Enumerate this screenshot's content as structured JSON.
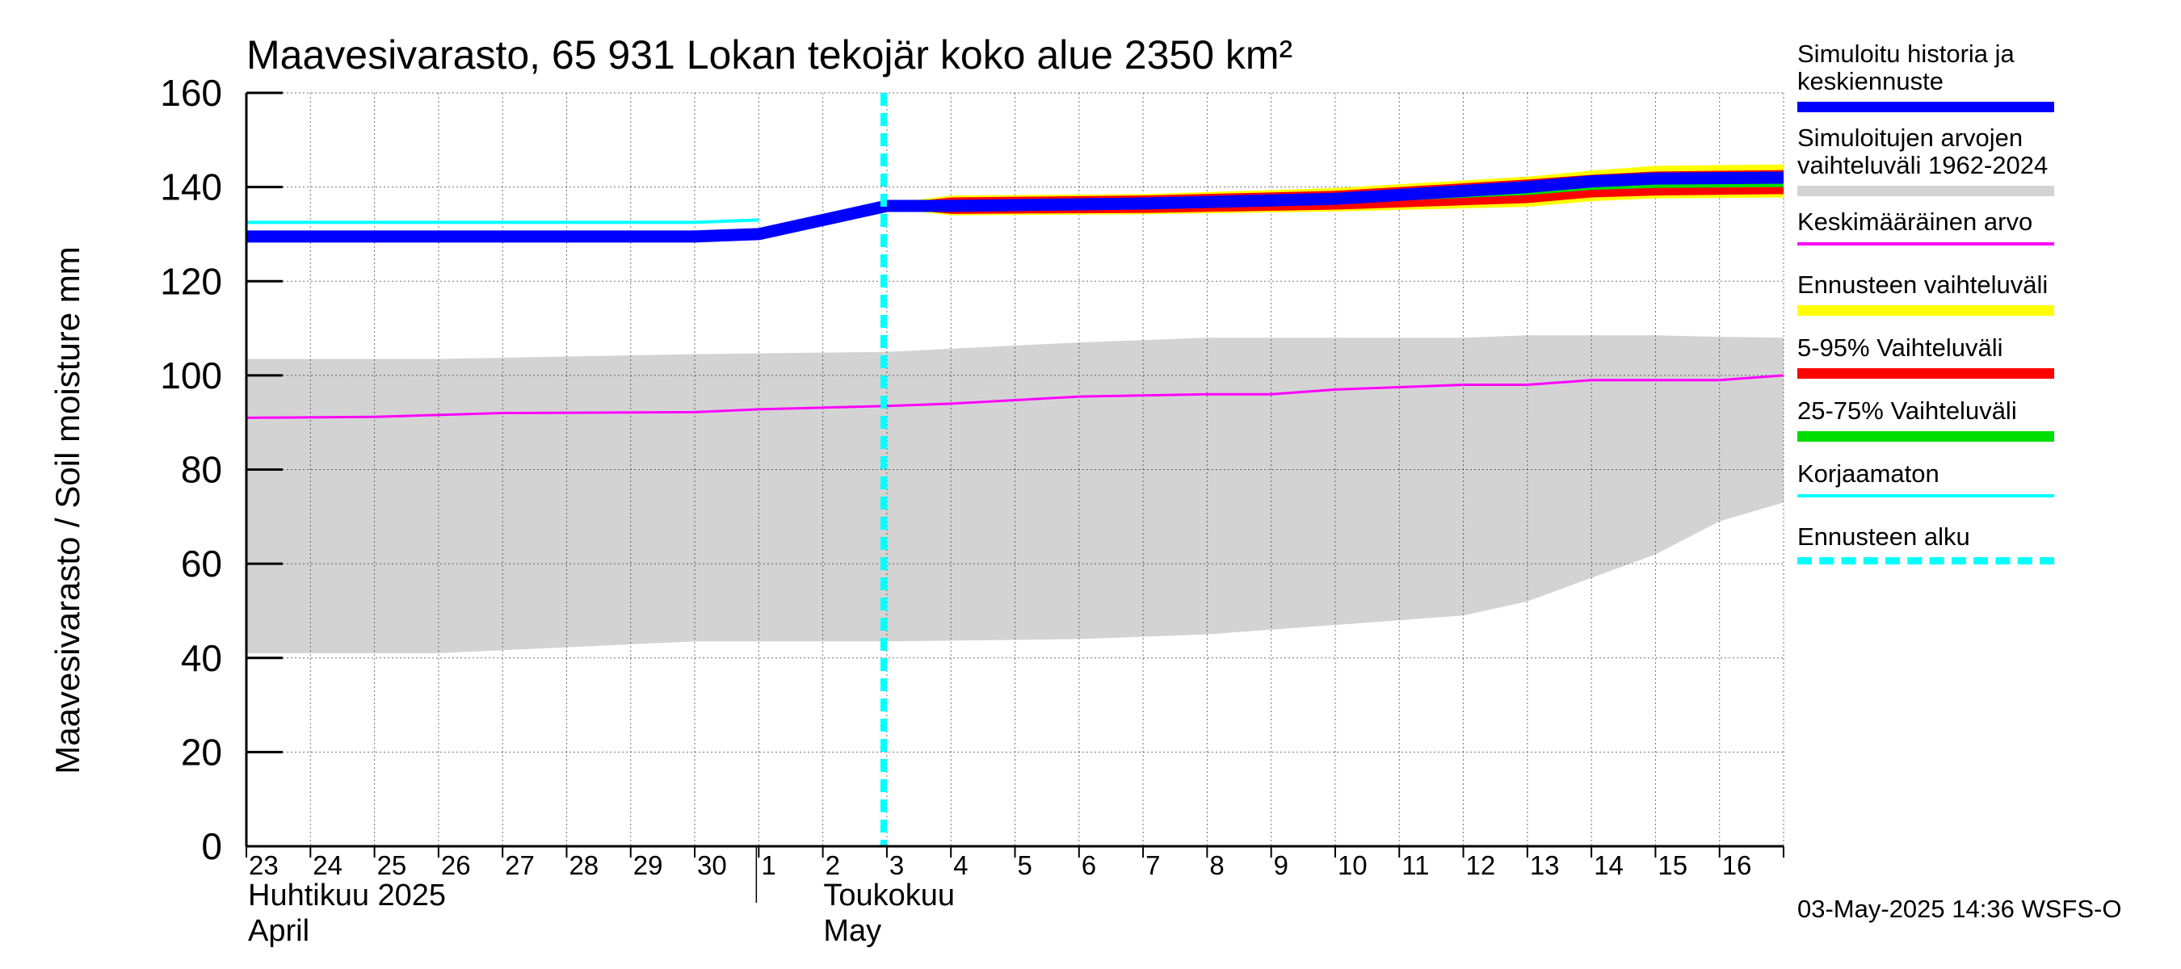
{
  "chart_data": {
    "type": "area",
    "title": "Maavesivarasto, 65 931 Lokan tekojär koko alue 2350 km²",
    "ylabel": "Maavesivarasto / Soil moisture   mm",
    "ylim": [
      0,
      160
    ],
    "yticks": [
      0,
      20,
      40,
      60,
      80,
      100,
      120,
      140,
      160
    ],
    "grid": true,
    "x_start": "2025-04-23",
    "x_end": "2025-05-16",
    "x_tick_labels": [
      "23",
      "24",
      "25",
      "26",
      "27",
      "28",
      "29",
      "30",
      "1",
      "2",
      "3",
      "4",
      "5",
      "6",
      "7",
      "8",
      "9",
      "10",
      "11",
      "12",
      "13",
      "14",
      "15",
      "16"
    ],
    "months": [
      {
        "fi": "Huhtikuu  2025",
        "en": "April",
        "start": "2025-04-23"
      },
      {
        "fi": "Toukokuu",
        "en": "May",
        "start": "2025-05-01"
      }
    ],
    "forecast_start": "2025-05-03",
    "series": [
      {
        "name": "Simuloitujen arvojen vaihteluväli 1962-2024",
        "kind": "band",
        "color": "#d3d3d3",
        "x": [
          "2025-04-23",
          "2025-04-26",
          "2025-04-30",
          "2025-05-03",
          "2025-05-06",
          "2025-05-08",
          "2025-05-11",
          "2025-05-12",
          "2025-05-13",
          "2025-05-14",
          "2025-05-15",
          "2025-05-16",
          "2025-05-17"
        ],
        "upper": [
          103.5,
          103.5,
          104.5,
          105,
          107,
          108,
          108,
          108,
          108.5,
          108.5,
          108.5,
          108.2,
          108
        ],
        "lower": [
          41,
          41,
          43.5,
          43.5,
          44,
          45,
          48,
          49,
          52,
          57,
          62,
          69,
          73
        ]
      },
      {
        "name": "Keskimääräinen arvo",
        "kind": "line",
        "color": "#ff00ff",
        "x": [
          "2025-04-23",
          "2025-04-25",
          "2025-04-27",
          "2025-04-30",
          "2025-05-01",
          "2025-05-03",
          "2025-05-04",
          "2025-05-06",
          "2025-05-08",
          "2025-05-09",
          "2025-05-10",
          "2025-05-12",
          "2025-05-13",
          "2025-05-14",
          "2025-05-16",
          "2025-05-17"
        ],
        "values": [
          91,
          91.2,
          92,
          92.2,
          92.8,
          93.5,
          94,
          95.5,
          96,
          96,
          97,
          98,
          98,
          99,
          99,
          100
        ]
      },
      {
        "name": "Ennusteen vaihteluväli",
        "kind": "band",
        "color": "#ffff00",
        "x": [
          "2025-05-03",
          "2025-05-04",
          "2025-05-07",
          "2025-05-10",
          "2025-05-13",
          "2025-05-14",
          "2025-05-15",
          "2025-05-17"
        ],
        "upper": [
          136.5,
          138.2,
          138.5,
          139.8,
          142.2,
          143.5,
          144.5,
          144.8
        ],
        "lower": [
          135.5,
          134,
          134.2,
          134.8,
          135.8,
          137,
          137.6,
          137.8
        ]
      },
      {
        "name": "5-95% Vaihteluväli",
        "kind": "band",
        "color": "#ff0000",
        "x": [
          "2025-05-03",
          "2025-05-04",
          "2025-05-07",
          "2025-05-10",
          "2025-05-13",
          "2025-05-14",
          "2025-05-15",
          "2025-05-17"
        ],
        "upper": [
          136.3,
          137.8,
          138.2,
          139.2,
          141.6,
          142.6,
          143.3,
          143.6
        ],
        "lower": [
          135.7,
          134.3,
          134.5,
          135.2,
          136.6,
          137.8,
          138.2,
          138.5
        ]
      },
      {
        "name": "25-75% Vaihteluväli",
        "kind": "band",
        "color": "#00dd00",
        "x": [
          "2025-05-03",
          "2025-05-04",
          "2025-05-07",
          "2025-05-10",
          "2025-05-13",
          "2025-05-14",
          "2025-05-15",
          "2025-05-17"
        ],
        "upper": [
          136.1,
          136.5,
          136.8,
          137.6,
          139.8,
          141,
          141.6,
          141.8
        ],
        "lower": [
          135.9,
          135.7,
          136,
          136.5,
          138.3,
          139.4,
          139.8,
          140
        ]
      },
      {
        "name": "Korjaamaton",
        "kind": "line",
        "color": "#00ffff",
        "x": [
          "2025-04-23",
          "2025-04-30",
          "2025-05-01"
        ],
        "values": [
          132.5,
          132.5,
          133
        ]
      },
      {
        "name": "Simuloitu historia ja keskiennuste",
        "kind": "line",
        "color": "#0000ff",
        "x": [
          "2025-04-23",
          "2025-04-30",
          "2025-05-01",
          "2025-05-03",
          "2025-05-04",
          "2025-05-07",
          "2025-05-10",
          "2025-05-13",
          "2025-05-14",
          "2025-05-15",
          "2025-05-17"
        ],
        "values": [
          129.5,
          129.5,
          130,
          136,
          136,
          136.5,
          137.5,
          140,
          141.2,
          141.8,
          142
        ]
      }
    ]
  },
  "legend": {
    "items": [
      {
        "label": "Simuloitu historia ja\nkeskiennuste",
        "color": "#0000ff",
        "style": "thick"
      },
      {
        "label": "Simuloitujen arvojen\nvaihteluväli 1962-2024",
        "color": "#d3d3d3",
        "style": "thick"
      },
      {
        "label": "Keskimääräinen arvo",
        "color": "#ff00ff",
        "style": "thin"
      },
      {
        "label": "Ennusteen vaihteluväli",
        "color": "#ffff00",
        "style": "thick"
      },
      {
        "label": "5-95% Vaihteluväli",
        "color": "#ff0000",
        "style": "thick"
      },
      {
        "label": "25-75% Vaihteluväli",
        "color": "#00dd00",
        "style": "thick"
      },
      {
        "label": "Korjaamaton",
        "color": "#00ffff",
        "style": "thin"
      },
      {
        "label": "Ennusteen alku",
        "color": "#00ffff",
        "style": "dashed"
      }
    ]
  },
  "footer": "03-May-2025 14:36 WSFS-O"
}
